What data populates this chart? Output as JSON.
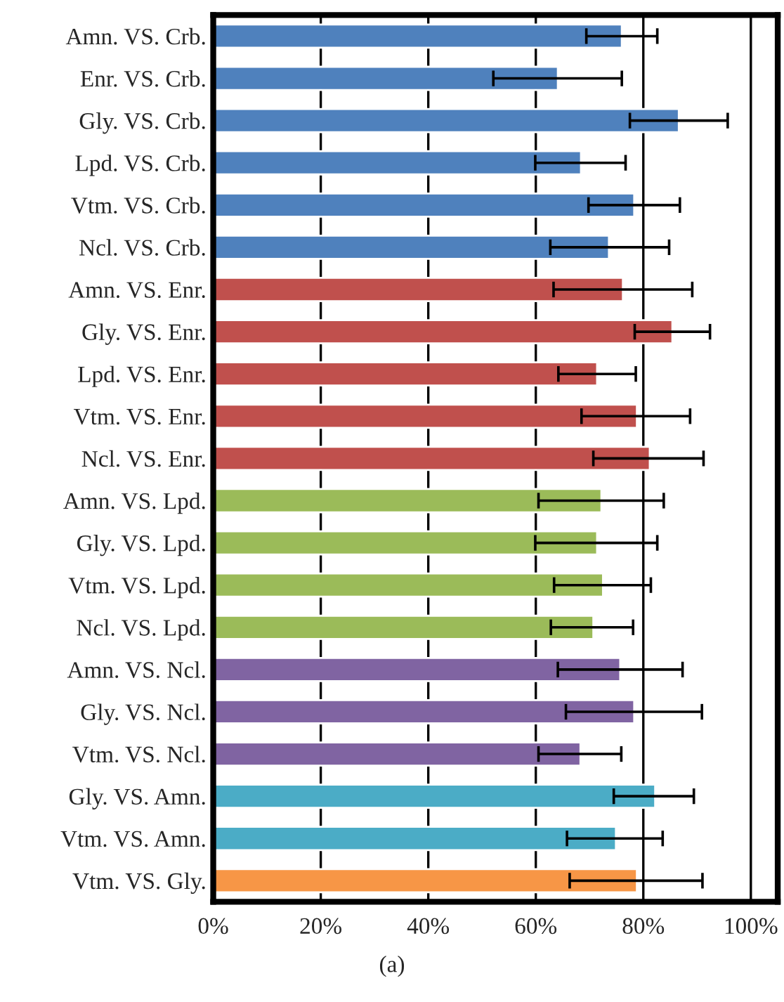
{
  "chart_data": {
    "type": "bar",
    "orientation": "horizontal",
    "categories": [
      "Amn. VS. Crb.",
      "Enr. VS. Crb.",
      "Gly. VS. Crb.",
      "Lpd. VS. Crb.",
      "Vtm. VS. Crb.",
      "Ncl. VS. Crb.",
      "Amn. VS. Enr.",
      "Gly. VS. Enr.",
      "Lpd. VS. Enr.",
      "Vtm. VS. Enr.",
      "Ncl. VS. Enr.",
      "Amn. VS. Lpd.",
      "Gly. VS. Lpd.",
      "Vtm. VS. Lpd.",
      "Ncl. VS. Lpd.",
      "Amn. VS. Ncl.",
      "Gly. VS. Ncl.",
      "Vtm. VS. Ncl.",
      "Gly. VS. Amn.",
      "Vtm. VS. Amn.",
      "Vtm. VS. Gly."
    ],
    "values": [
      76.0,
      64.1,
      86.6,
      68.4,
      78.3,
      73.6,
      76.2,
      85.4,
      71.4,
      78.8,
      81.2,
      72.2,
      71.4,
      72.5,
      70.7,
      75.7,
      78.3,
      68.3,
      82.2,
      74.9,
      78.8
    ],
    "errors": [
      [
        69.4,
        82.6
      ],
      [
        52.1,
        76.0
      ],
      [
        77.5,
        95.7
      ],
      [
        59.9,
        76.7
      ],
      [
        69.8,
        86.8
      ],
      [
        62.7,
        84.8
      ],
      [
        63.3,
        89.1
      ],
      [
        78.4,
        92.4
      ],
      [
        64.2,
        78.6
      ],
      [
        68.5,
        88.7
      ],
      [
        70.7,
        91.2
      ],
      [
        60.5,
        83.8
      ],
      [
        59.9,
        82.6
      ],
      [
        63.4,
        81.4
      ],
      [
        62.8,
        78.1
      ],
      [
        64.1,
        87.3
      ],
      [
        65.6,
        90.9
      ],
      [
        60.5,
        75.9
      ],
      [
        74.5,
        89.4
      ],
      [
        65.8,
        83.6
      ],
      [
        66.3,
        91.0
      ]
    ],
    "colors": [
      "#4f81bd",
      "#4f81bd",
      "#4f81bd",
      "#4f81bd",
      "#4f81bd",
      "#4f81bd",
      "#c0504d",
      "#c0504d",
      "#c0504d",
      "#c0504d",
      "#c0504d",
      "#9bbb59",
      "#9bbb59",
      "#9bbb59",
      "#9bbb59",
      "#8064a2",
      "#8064a2",
      "#8064a2",
      "#4bacc6",
      "#4bacc6",
      "#f79646"
    ],
    "xlim": [
      0,
      105
    ],
    "xticks": [
      {
        "value": 0,
        "label": "0%"
      },
      {
        "value": 20,
        "label": "20%"
      },
      {
        "value": 40,
        "label": "40%"
      },
      {
        "value": 60,
        "label": "60%"
      },
      {
        "value": 80,
        "label": "80%"
      },
      {
        "value": 100,
        "label": "100%"
      }
    ],
    "grid": "x",
    "annotations": [
      "(a)"
    ]
  }
}
